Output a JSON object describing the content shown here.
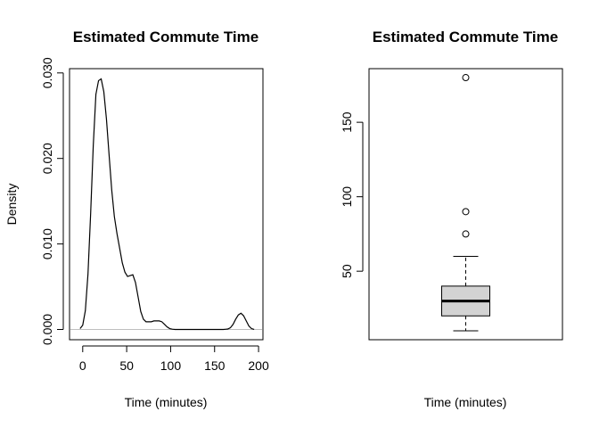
{
  "chart_data": [
    {
      "type": "density",
      "title": "Estimated Commute Time",
      "xlabel": "Time (minutes)",
      "ylabel": "Density",
      "xlim": [
        -15,
        205
      ],
      "ylim": [
        -0.0012,
        0.0305
      ],
      "x_ticks": [
        0,
        50,
        100,
        150,
        200
      ],
      "x_tick_labels": [
        "0",
        "50",
        "100",
        "150",
        "200"
      ],
      "y_ticks": [
        0.0,
        0.01,
        0.02,
        0.03
      ],
      "y_tick_labels": [
        "0.000",
        "0.010",
        "0.020",
        "0.030"
      ],
      "baseline": 0,
      "line_color": "#000000",
      "baseline_color": "#bebebe",
      "series": [
        {
          "x": [
            -3,
            0,
            3,
            6,
            9,
            12,
            15,
            18,
            21,
            24,
            27,
            30,
            33,
            36,
            39,
            42,
            45,
            48,
            51,
            54,
            57,
            60,
            63,
            66,
            69,
            72,
            75,
            78,
            81,
            84,
            87,
            90,
            93,
            96,
            99,
            102,
            105,
            110,
            120,
            140,
            160,
            165,
            168,
            171,
            174,
            177,
            180,
            183,
            186,
            189,
            192,
            195
          ],
          "y": [
            0.0001,
            0.0005,
            0.0022,
            0.0065,
            0.0135,
            0.0215,
            0.0275,
            0.0291,
            0.0293,
            0.0278,
            0.0246,
            0.0204,
            0.0163,
            0.0132,
            0.0112,
            0.0095,
            0.0078,
            0.0067,
            0.0062,
            0.0063,
            0.0064,
            0.0055,
            0.0038,
            0.0021,
            0.0012,
            0.0009,
            0.0009,
            0.0009,
            0.001,
            0.001,
            0.001,
            0.0009,
            0.0006,
            0.0003,
            0.0001,
            3e-05,
            0.0,
            0.0,
            0.0,
            0.0,
            0.0,
            5e-05,
            0.0002,
            0.0006,
            0.0012,
            0.0017,
            0.0019,
            0.0016,
            0.001,
            0.0004,
            0.0001,
            0.0
          ]
        }
      ]
    },
    {
      "type": "boxplot",
      "title": "Estimated Commute Time",
      "xlabel": "Time (minutes)",
      "ylabel": "",
      "ylim": [
        4,
        186
      ],
      "y_ticks": [
        50,
        100,
        150
      ],
      "y_tick_labels": [
        "50",
        "100",
        "150"
      ],
      "box_fill": "#d3d3d3",
      "stats": {
        "min": 10,
        "q1": 20,
        "median": 30,
        "q3": 40,
        "max": 60
      },
      "outliers": [
        75,
        90,
        180
      ]
    }
  ]
}
